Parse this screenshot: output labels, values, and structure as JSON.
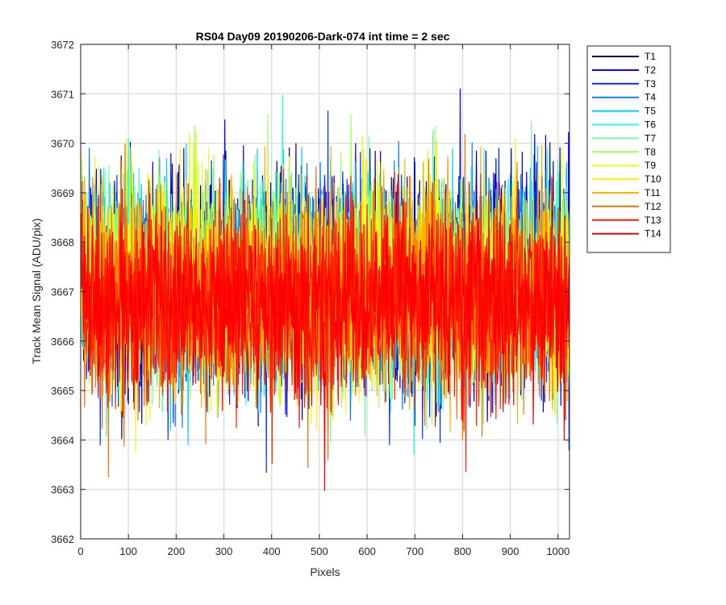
{
  "chart_data": {
    "type": "line",
    "title": "RS04 Day09 20190206-Dark-074 int time = 2 sec",
    "xlabel": "Pixels",
    "ylabel": "Track Mean Signal (ADU/pix)",
    "xlim": [
      0,
      1024
    ],
    "ylim": [
      3662,
      3672
    ],
    "xticks": [
      0,
      100,
      200,
      300,
      400,
      500,
      600,
      700,
      800,
      900,
      1000
    ],
    "yticks": [
      3662,
      3663,
      3664,
      3665,
      3666,
      3667,
      3668,
      3669,
      3670,
      3671,
      3672
    ],
    "grid": true,
    "legend_position": "outside-top-right",
    "n_points": 1024,
    "series": [
      {
        "name": "T1",
        "color": "#00008f",
        "mean": 3667.3,
        "spread": 1.05
      },
      {
        "name": "T2",
        "color": "#0000df",
        "mean": 3667.2,
        "spread": 1.05
      },
      {
        "name": "T3",
        "color": "#0030ff",
        "mean": 3667.1,
        "spread": 1.05
      },
      {
        "name": "T4",
        "color": "#0080ff",
        "mean": 3667.1,
        "spread": 1.0
      },
      {
        "name": "T5",
        "color": "#00cfff",
        "mean": 3667.2,
        "spread": 1.0
      },
      {
        "name": "T6",
        "color": "#20ffdf",
        "mean": 3667.2,
        "spread": 1.0
      },
      {
        "name": "T7",
        "color": "#70ffa0",
        "mean": 3667.1,
        "spread": 1.0
      },
      {
        "name": "T8",
        "color": "#9fff60",
        "mean": 3667.2,
        "spread": 1.0
      },
      {
        "name": "T9",
        "color": "#dfff20",
        "mean": 3667.1,
        "spread": 1.0
      },
      {
        "name": "T10",
        "color": "#ffef00",
        "mean": 3667.1,
        "spread": 1.0
      },
      {
        "name": "T11",
        "color": "#ffaf00",
        "mean": 3667.0,
        "spread": 1.0
      },
      {
        "name": "T12",
        "color": "#ff7000",
        "mean": 3666.9,
        "spread": 1.0
      },
      {
        "name": "T13",
        "color": "#ff2000",
        "mean": 3666.8,
        "spread": 1.0
      },
      {
        "name": "T14",
        "color": "#ff0000",
        "mean": 3666.8,
        "spread": 0.95
      }
    ]
  }
}
